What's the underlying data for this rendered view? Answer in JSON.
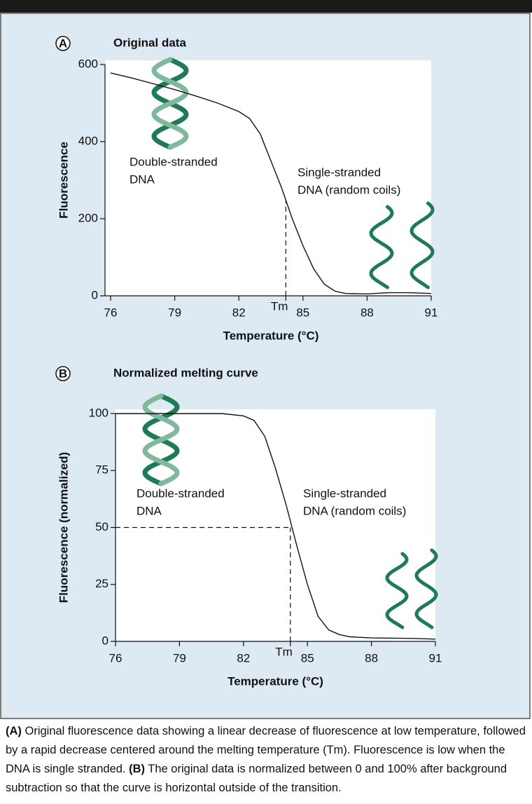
{
  "chart_data": [
    {
      "type": "line",
      "panel": "A",
      "title": "Original data",
      "x_label": "Temperature (°C)",
      "y_label": "Fluorescence",
      "x": [
        76,
        77,
        78,
        79,
        80,
        81,
        82,
        82.5,
        83,
        83.5,
        84,
        84.5,
        85,
        85.5,
        86,
        86.5,
        87,
        88,
        89,
        90,
        91
      ],
      "values": [
        578,
        565,
        550,
        535,
        518,
        500,
        478,
        460,
        420,
        350,
        280,
        200,
        130,
        70,
        30,
        12,
        6,
        5,
        8,
        8,
        6
      ],
      "color": "#111111",
      "xlim": [
        76,
        91
      ],
      "xticks": [
        76,
        79,
        82,
        {
          "value": 84.2,
          "label": "Tm"
        },
        85,
        88,
        91
      ],
      "ylim": [
        0,
        600
      ],
      "yticks": [
        0,
        200,
        400,
        600
      ],
      "annotations": [
        [
          "Double-stranded",
          "DNA"
        ],
        [
          "Single-stranded",
          "DNA (random coils)"
        ]
      ]
    },
    {
      "type": "line",
      "panel": "B",
      "title": "Normalized melting curve",
      "x_label": "Temperature (°C)",
      "y_label": "Fluorescence (normalized)",
      "x": [
        76,
        81,
        82,
        82.5,
        83,
        83.5,
        84,
        84.5,
        85,
        85.5,
        86,
        86.5,
        87,
        88,
        90,
        91
      ],
      "values": [
        100,
        100,
        99,
        97,
        90,
        76,
        60,
        42,
        25,
        11,
        5,
        3,
        2,
        1.5,
        1.3,
        1
      ],
      "color": "#111111",
      "xlim": [
        76,
        91
      ],
      "xticks": [
        76,
        79,
        82,
        {
          "value": 84.2,
          "label": "Tm"
        },
        85,
        88,
        91
      ],
      "ylim": [
        0,
        100
      ],
      "yticks": [
        0,
        25,
        50,
        75,
        100
      ],
      "annotations": [
        [
          "Double-stranded",
          "DNA"
        ],
        [
          "Single-stranded",
          "DNA (random coils)"
        ]
      ]
    }
  ],
  "caption": [
    "(A)",
    " Original fluorescence data showing a linear decrease of fluorescence at low temperature, followed by a rapid decrease centered around the melting temperature (Tm). Fluorescence is low when the DNA is single stranded. ",
    "(B)",
    " The original data is normalized between 0 and 100% after background subtraction so that the curve is horizontal outside of the transition."
  ]
}
